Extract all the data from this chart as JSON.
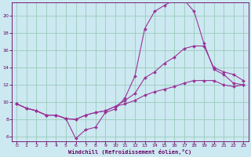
{
  "background_color": "#cce8f0",
  "grid_color": "#99ccbb",
  "line_color": "#993399",
  "marker_color": "#993399",
  "xlabel": "Windchill (Refroidissement éolien,°C)",
  "xlabel_color": "#660066",
  "tick_color": "#660066",
  "xlim": [
    -0.5,
    23.5
  ],
  "ylim": [
    5.5,
    21.5
  ],
  "yticks": [
    6,
    8,
    10,
    12,
    14,
    16,
    18,
    20
  ],
  "xticks": [
    0,
    1,
    2,
    3,
    4,
    5,
    6,
    7,
    8,
    9,
    10,
    11,
    12,
    13,
    14,
    15,
    16,
    17,
    18,
    19,
    20,
    21,
    22,
    23
  ],
  "curve1_x": [
    0,
    1,
    2,
    3,
    4,
    5,
    6,
    7,
    8,
    9,
    10,
    11,
    12,
    13,
    14,
    15,
    16,
    17,
    18,
    19,
    20,
    21,
    22,
    23
  ],
  "curve1_y": [
    9.8,
    9.3,
    9.0,
    8.5,
    8.5,
    8.1,
    5.8,
    6.8,
    7.1,
    8.8,
    9.2,
    10.5,
    13.0,
    18.5,
    20.5,
    21.2,
    21.8,
    21.8,
    20.5,
    16.8,
    13.8,
    13.2,
    12.2,
    12.0
  ],
  "curve2_x": [
    0,
    1,
    2,
    3,
    4,
    5,
    6,
    7,
    8,
    9,
    10,
    11,
    12,
    13,
    14,
    15,
    16,
    17,
    18,
    19,
    20,
    21,
    22,
    23
  ],
  "curve2_y": [
    9.8,
    9.3,
    9.0,
    8.5,
    8.5,
    8.1,
    8.0,
    8.5,
    8.8,
    9.0,
    9.5,
    10.2,
    11.0,
    12.8,
    13.5,
    14.5,
    15.2,
    16.2,
    16.5,
    16.5,
    14.0,
    13.5,
    13.2,
    12.5
  ],
  "curve3_x": [
    0,
    1,
    2,
    3,
    4,
    5,
    6,
    7,
    8,
    9,
    10,
    11,
    12,
    13,
    14,
    15,
    16,
    17,
    18,
    19,
    20,
    21,
    22,
    23
  ],
  "curve3_y": [
    9.8,
    9.3,
    9.0,
    8.5,
    8.5,
    8.1,
    8.0,
    8.5,
    8.8,
    9.0,
    9.5,
    9.8,
    10.2,
    10.8,
    11.2,
    11.5,
    11.8,
    12.2,
    12.5,
    12.5,
    12.5,
    12.0,
    11.8,
    12.0
  ]
}
